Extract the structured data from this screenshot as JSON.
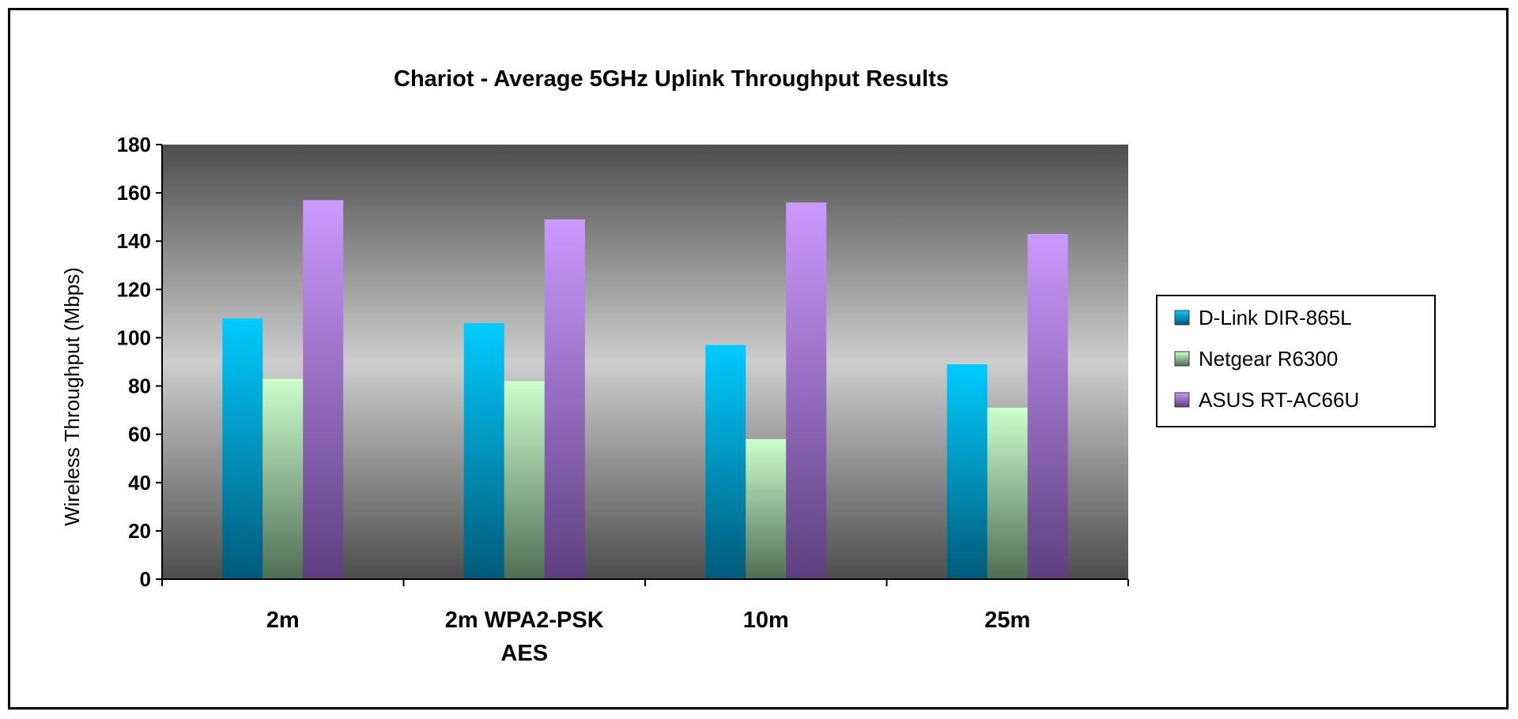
{
  "chart_data": {
    "type": "bar",
    "title": "Chariot - Average 5GHz Uplink Throughput Results",
    "ylabel": "Wireless Throughput (Mbps)",
    "xlabel": "",
    "categories": [
      [
        "2m"
      ],
      [
        "2m WPA2-PSK",
        "AES"
      ],
      [
        "10m"
      ],
      [
        "25m"
      ]
    ],
    "ylim": [
      0,
      180
    ],
    "yticks": [
      0,
      20,
      40,
      60,
      80,
      100,
      120,
      140,
      160,
      180
    ],
    "grid": false,
    "legend_position": "right",
    "series": [
      {
        "name": "D-Link DIR-865L",
        "values": [
          108,
          106,
          97,
          89
        ],
        "color_top": "#00ccff",
        "color_bottom": "#005a7a"
      },
      {
        "name": "Netgear R6300",
        "values": [
          83,
          82,
          58,
          71
        ],
        "color_top": "#ccffcc",
        "color_bottom": "#4f6e55"
      },
      {
        "name": "ASUS RT-AC66U",
        "values": [
          157,
          149,
          156,
          143
        ],
        "color_top": "#cc99ff",
        "color_bottom": "#5e3f7e"
      }
    ]
  }
}
